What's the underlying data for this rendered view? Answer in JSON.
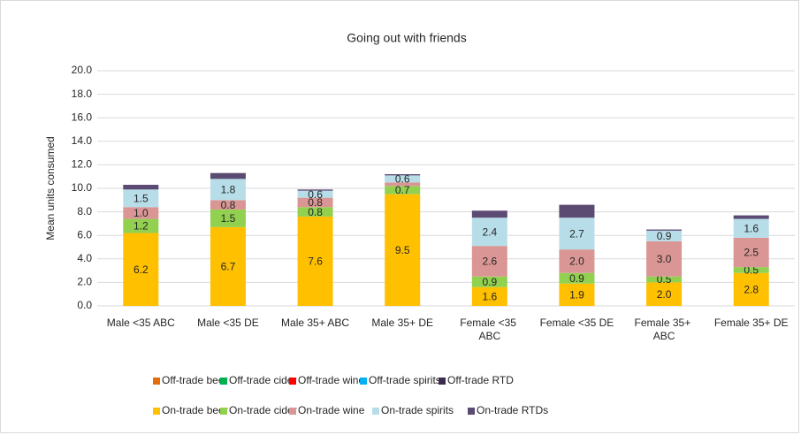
{
  "chart_data": {
    "type": "stacked_bar",
    "title": "Going out with friends",
    "y_label": "Mean units consumed",
    "categories": [
      "Male <35 ABC",
      "Male <35 DE",
      "Male 35+ ABC",
      "Male 35+ DE",
      "Female <35 ABC",
      "Female <35 DE",
      "Female 35+ ABC",
      "Female 35+ DE"
    ],
    "ylim": [
      0,
      20
    ],
    "yticks": [
      {
        "value": 0,
        "label": "0.0"
      },
      {
        "value": 2,
        "label": "2.0"
      },
      {
        "value": 4,
        "label": "4.0"
      },
      {
        "value": 6,
        "label": "6.0"
      },
      {
        "value": 8,
        "label": "8.0"
      },
      {
        "value": 10,
        "label": "10.0"
      },
      {
        "value": 12,
        "label": "12.0"
      },
      {
        "value": 14,
        "label": "14.0"
      },
      {
        "value": 16,
        "label": "16.0"
      },
      {
        "value": 18,
        "label": "18.0"
      },
      {
        "value": 20,
        "label": "20.0"
      }
    ],
    "grid": true,
    "legend": "bottom",
    "series": [
      {
        "name": "Off-trade beer",
        "color": "#e46c0a",
        "values": [
          0,
          0,
          0,
          0,
          0,
          0,
          0,
          0
        ]
      },
      {
        "name": "Off-trade cider",
        "color": "#00b050",
        "values": [
          0,
          0,
          0,
          0,
          0,
          0,
          0,
          0
        ]
      },
      {
        "name": "Off-trade wine",
        "color": "#ff0000",
        "values": [
          0,
          0,
          0,
          0,
          0,
          0,
          0,
          0
        ]
      },
      {
        "name": "Off-trade spirits",
        "color": "#00b0f0",
        "values": [
          0,
          0,
          0,
          0,
          0,
          0,
          0,
          0
        ]
      },
      {
        "name": "Off-trade RTD",
        "color": "#3d2b4f",
        "values": [
          0,
          0,
          0,
          0,
          0,
          0,
          0,
          0
        ]
      },
      {
        "name": "On-trade beer",
        "color": "#ffc000",
        "values": [
          6.2,
          6.7,
          7.6,
          9.5,
          1.6,
          1.9,
          2.0,
          2.8
        ],
        "value_labels": [
          "6.2",
          "6.7",
          "7.6",
          "9.5",
          "1.6",
          "1.9",
          "2.0",
          "2.8"
        ]
      },
      {
        "name": "On-trade cider",
        "color": "#92d050",
        "values": [
          1.2,
          1.5,
          0.8,
          0.7,
          0.9,
          0.9,
          0.5,
          0.5
        ],
        "value_labels": [
          "1.2",
          "1.5",
          "0.8",
          "0.7",
          "0.9",
          "0.9",
          "0.5",
          "0.5"
        ]
      },
      {
        "name": "On-trade wine",
        "color": "#da9694",
        "values": [
          1.0,
          0.8,
          0.8,
          0.3,
          2.6,
          2.0,
          3.0,
          2.5
        ],
        "value_labels": [
          "1.0",
          "0.8",
          "0.8",
          null,
          "2.6",
          "2.0",
          "3.0",
          "2.5"
        ]
      },
      {
        "name": "On-trade spirits",
        "color": "#b7dee8",
        "values": [
          1.5,
          1.8,
          0.6,
          0.6,
          2.4,
          2.7,
          0.9,
          1.6
        ],
        "value_labels": [
          "1.5",
          "1.8",
          "0.6",
          "0.6",
          "2.4",
          "2.7",
          "0.9",
          "1.6"
        ]
      },
      {
        "name": "On-trade RTDs",
        "color": "#5b4a72",
        "values": [
          0.4,
          0.5,
          0.1,
          0.1,
          0.6,
          1.1,
          0.1,
          0.3
        ]
      }
    ]
  }
}
